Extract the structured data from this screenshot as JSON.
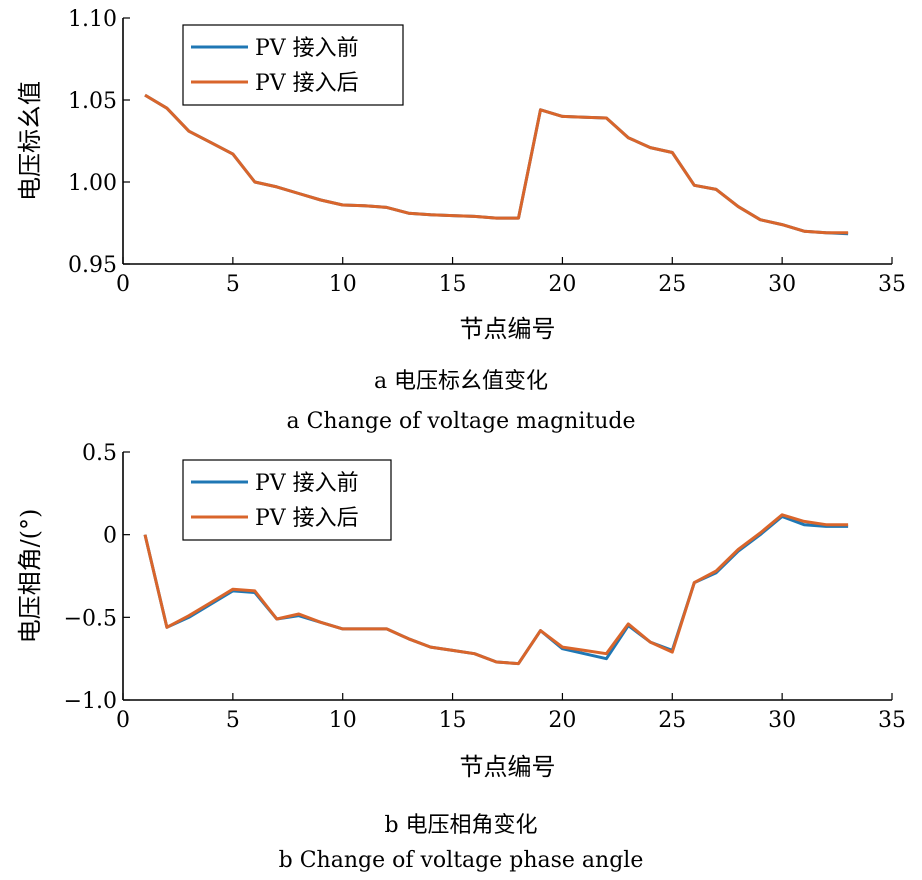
{
  "chart_data": [
    {
      "type": "line",
      "caption_cn": "a  电压标幺值变化",
      "caption_en": "a  Change of voltage magnitude",
      "xlabel": "节点编号",
      "ylabel": "电压标幺值",
      "xlim": [
        0,
        35
      ],
      "ylim": [
        0.95,
        1.1
      ],
      "xticks": [
        0,
        5,
        10,
        15,
        20,
        25,
        30,
        35
      ],
      "xtick_labels": [
        "0",
        "5",
        "10",
        "15",
        "20",
        "25",
        "30",
        "35"
      ],
      "yticks": [
        0.95,
        1.0,
        1.05,
        1.1
      ],
      "ytick_labels": [
        "0.95",
        "1.00",
        "1.05",
        "1.10"
      ],
      "legend_position": "top-left",
      "x": [
        1,
        2,
        3,
        4,
        5,
        6,
        7,
        8,
        9,
        10,
        11,
        12,
        13,
        14,
        15,
        16,
        17,
        18,
        19,
        20,
        21,
        22,
        23,
        24,
        25,
        26,
        27,
        28,
        29,
        30,
        31,
        32,
        33
      ],
      "series": [
        {
          "name": "PV 接入前",
          "color": "#1f77b4",
          "values": [
            1.053,
            1.045,
            1.031,
            1.024,
            1.017,
            1.0,
            0.997,
            0.993,
            0.989,
            0.986,
            0.9855,
            0.9845,
            0.981,
            0.98,
            0.9795,
            0.979,
            0.978,
            0.978,
            1.044,
            1.04,
            1.0395,
            1.039,
            1.027,
            1.021,
            1.018,
            0.998,
            0.9955,
            0.985,
            0.977,
            0.974,
            0.97,
            0.969,
            0.9685
          ]
        },
        {
          "name": "PV 接入后",
          "color": "#d9652b",
          "values": [
            1.053,
            1.045,
            1.031,
            1.024,
            1.017,
            1.0,
            0.997,
            0.993,
            0.989,
            0.986,
            0.9855,
            0.9845,
            0.981,
            0.98,
            0.9795,
            0.979,
            0.978,
            0.978,
            1.044,
            1.04,
            1.0395,
            1.039,
            1.027,
            1.021,
            1.018,
            0.998,
            0.9955,
            0.985,
            0.977,
            0.974,
            0.97,
            0.969,
            0.969
          ]
        }
      ]
    },
    {
      "type": "line",
      "caption_cn": "b  电压相角变化",
      "caption_en": "b  Change of voltage phase angle",
      "xlabel": "节点编号",
      "ylabel": "电压相角/(°)",
      "xlim": [
        0,
        35
      ],
      "ylim": [
        -1.0,
        0.5
      ],
      "xticks": [
        0,
        5,
        10,
        15,
        20,
        25,
        30,
        35
      ],
      "xtick_labels": [
        "0",
        "5",
        "10",
        "15",
        "20",
        "25",
        "30",
        "35"
      ],
      "yticks": [
        -1.0,
        -0.5,
        0,
        0.5
      ],
      "ytick_labels": [
        "−1.0",
        "−0.5",
        "0",
        "0.5"
      ],
      "legend_position": "top-left",
      "x": [
        1,
        2,
        3,
        4,
        5,
        6,
        7,
        8,
        9,
        10,
        11,
        12,
        13,
        14,
        15,
        16,
        17,
        18,
        19,
        20,
        21,
        22,
        23,
        24,
        25,
        26,
        27,
        28,
        29,
        30,
        31,
        32,
        33
      ],
      "series": [
        {
          "name": "PV 接入前",
          "color": "#1f77b4",
          "values": [
            0.0,
            -0.56,
            -0.5,
            -0.42,
            -0.34,
            -0.35,
            -0.51,
            -0.49,
            -0.53,
            -0.57,
            -0.57,
            -0.57,
            -0.63,
            -0.68,
            -0.7,
            -0.72,
            -0.77,
            -0.78,
            -0.58,
            -0.69,
            -0.72,
            -0.75,
            -0.55,
            -0.65,
            -0.7,
            -0.29,
            -0.23,
            -0.1,
            0.0,
            0.11,
            0.06,
            0.05,
            0.05
          ]
        },
        {
          "name": "PV 接入后",
          "color": "#d9652b",
          "values": [
            0.0,
            -0.56,
            -0.49,
            -0.41,
            -0.33,
            -0.34,
            -0.51,
            -0.48,
            -0.53,
            -0.57,
            -0.57,
            -0.57,
            -0.63,
            -0.68,
            -0.7,
            -0.72,
            -0.77,
            -0.78,
            -0.58,
            -0.68,
            -0.7,
            -0.72,
            -0.54,
            -0.65,
            -0.71,
            -0.29,
            -0.22,
            -0.09,
            0.01,
            0.12,
            0.08,
            0.06,
            0.06
          ]
        }
      ]
    }
  ]
}
